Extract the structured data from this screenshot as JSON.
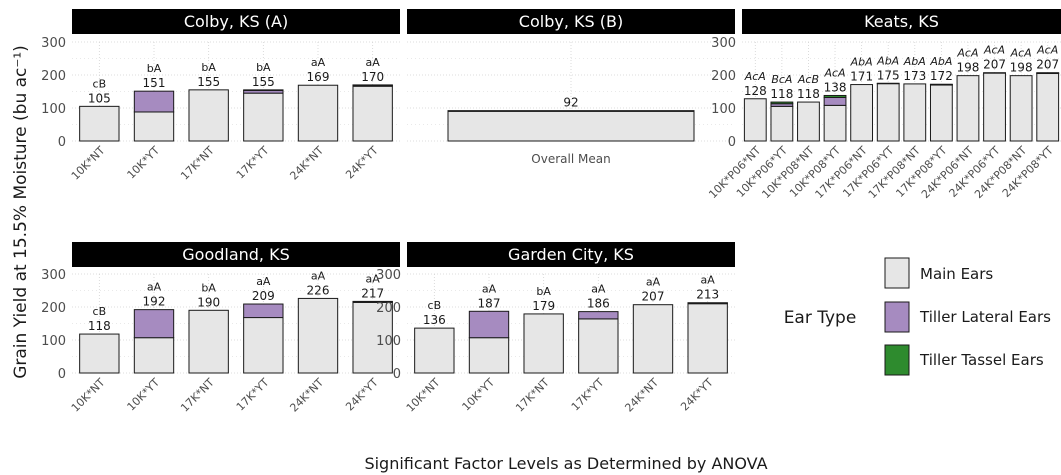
{
  "figure": {
    "ylabel": "Grain Yield at 15.5% Moisture (bu ac⁻¹)",
    "xlabel": "Significant Factor Levels as Determined by ANOVA",
    "legend": {
      "title": "Ear Type",
      "entries": [
        "Main Ears",
        "Tiller Lateral Ears",
        "Tiller Tassel Ears"
      ],
      "placement": "right"
    },
    "colors": {
      "main": "#e6e6e6",
      "lateral": "#a68bc0",
      "tassel": "#2e8b2e",
      "strip": "#000000",
      "outline": "#1a1a1a",
      "grid": "#d3d3d3"
    }
  },
  "chart_data": [
    {
      "type": "bar",
      "stacked": true,
      "title": "Colby, KS (A)",
      "ylim": [
        0,
        300
      ],
      "yticks": [
        0,
        100,
        200,
        300
      ],
      "categories": [
        "10K*NT",
        "10K*YT",
        "17K*NT",
        "17K*YT",
        "24K*NT",
        "24K*YT"
      ],
      "series": [
        {
          "name": "Main Ears",
          "values": [
            105,
            88,
            155,
            145,
            169,
            166
          ]
        },
        {
          "name": "Tiller Lateral Ears",
          "values": [
            0,
            63,
            0,
            8,
            0,
            3
          ]
        },
        {
          "name": "Tiller Tassel Ears",
          "values": [
            0,
            0,
            0,
            2,
            0,
            1
          ]
        }
      ],
      "totals": [
        "105",
        "151",
        "155",
        "155",
        "169",
        "170"
      ],
      "letters": [
        "cB",
        "bA",
        "bA",
        "bA",
        "aA",
        "aA"
      ]
    },
    {
      "type": "bar",
      "stacked": true,
      "title": "Colby, KS (B)",
      "ylim": [
        0,
        300
      ],
      "yticks": [
        0,
        100,
        200,
        300
      ],
      "categories": [
        "Overall Mean"
      ],
      "series": [
        {
          "name": "Main Ears",
          "values": [
            90
          ]
        },
        {
          "name": "Tiller Lateral Ears",
          "values": [
            2
          ]
        },
        {
          "name": "Tiller Tassel Ears",
          "values": [
            0
          ]
        }
      ],
      "totals": [
        "92"
      ],
      "letters": [
        ""
      ]
    },
    {
      "type": "bar",
      "stacked": true,
      "title": "Keats, KS",
      "ylim": [
        0,
        300
      ],
      "yticks": [
        0,
        100,
        200,
        300
      ],
      "categories": [
        "10K*P06*NT",
        "10K*P06*YT",
        "10K*P08*NT",
        "10K*P08*YT",
        "17K*P06*NT",
        "17K*P06*YT",
        "17K*P08*NT",
        "17K*P08*YT",
        "24K*P06*NT",
        "24K*P06*YT",
        "24K*P08*NT",
        "24K*P08*YT"
      ],
      "series": [
        {
          "name": "Main Ears",
          "values": [
            128,
            105,
            118,
            108,
            171,
            174,
            173,
            170,
            198,
            206,
            198,
            205
          ]
        },
        {
          "name": "Tiller Lateral Ears",
          "values": [
            0,
            8,
            0,
            24,
            0,
            0,
            0,
            1,
            0,
            0,
            0,
            1
          ]
        },
        {
          "name": "Tiller Tassel Ears",
          "values": [
            0,
            5,
            0,
            6,
            0,
            1,
            0,
            1,
            0,
            1,
            0,
            1
          ]
        }
      ],
      "totals": [
        "128",
        "118",
        "118",
        "138",
        "171",
        "175",
        "173",
        "172",
        "198",
        "207",
        "198",
        "207"
      ],
      "letters": [
        "AcA",
        "BcA",
        "AcB",
        "AcA",
        "AbA",
        "AbA",
        "AbA",
        "AbA",
        "AcA",
        "AcA",
        "AcA",
        "AcA"
      ]
    },
    {
      "type": "bar",
      "stacked": true,
      "title": "Goodland, KS",
      "ylim": [
        0,
        300
      ],
      "yticks": [
        0,
        100,
        200,
        300
      ],
      "categories": [
        "10K*NT",
        "10K*YT",
        "17K*NT",
        "17K*YT",
        "24K*NT",
        "24K*YT"
      ],
      "series": [
        {
          "name": "Main Ears",
          "values": [
            118,
            107,
            190,
            168,
            226,
            214
          ]
        },
        {
          "name": "Tiller Lateral Ears",
          "values": [
            0,
            85,
            0,
            41,
            0,
            2
          ]
        },
        {
          "name": "Tiller Tassel Ears",
          "values": [
            0,
            0,
            0,
            0,
            0,
            1
          ]
        }
      ],
      "totals": [
        "118",
        "192",
        "190",
        "209",
        "226",
        "217"
      ],
      "letters": [
        "cB",
        "aA",
        "bA",
        "aA",
        "aA",
        "aA"
      ]
    },
    {
      "type": "bar",
      "stacked": true,
      "title": "Garden City, KS",
      "ylim": [
        0,
        300
      ],
      "yticks": [
        0,
        100,
        200,
        300
      ],
      "categories": [
        "10K*NT",
        "10K*YT",
        "17K*NT",
        "17K*YT",
        "24K*NT",
        "24K*YT"
      ],
      "series": [
        {
          "name": "Main Ears",
          "values": [
            136,
            107,
            179,
            164,
            207,
            210
          ]
        },
        {
          "name": "Tiller Lateral Ears",
          "values": [
            0,
            80,
            0,
            22,
            0,
            2
          ]
        },
        {
          "name": "Tiller Tassel Ears",
          "values": [
            0,
            0,
            0,
            0,
            0,
            1
          ]
        }
      ],
      "totals": [
        "136",
        "187",
        "179",
        "186",
        "207",
        "213"
      ],
      "letters": [
        "cB",
        "aA",
        "bA",
        "aA",
        "aA",
        "aA"
      ]
    }
  ]
}
